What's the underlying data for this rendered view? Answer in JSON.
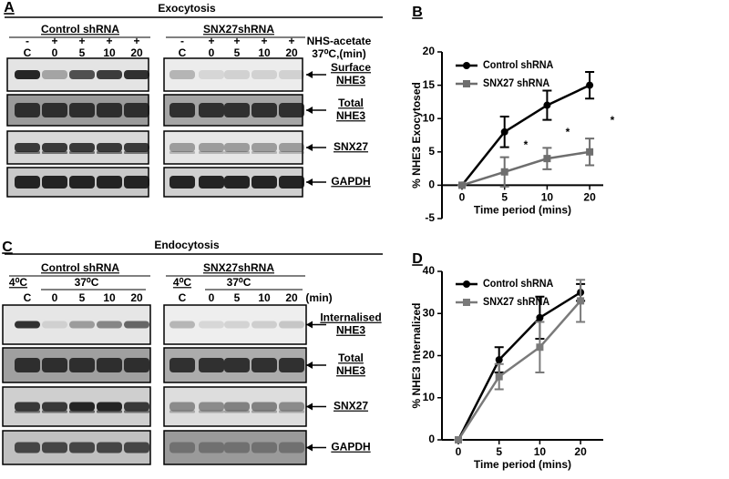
{
  "panel_labels": [
    "A",
    "B",
    "C",
    "D"
  ],
  "exocytosis": {
    "title": "Exocytosis",
    "groups": [
      "Control shRNA",
      "SNX27shRNA"
    ],
    "treatment_row": [
      "-",
      "+",
      "+",
      "+",
      "+"
    ],
    "lanes": [
      "C",
      "0",
      "5",
      "10",
      "20"
    ],
    "conditions": [
      "NHS-acetate",
      "37⁰C,(min)"
    ],
    "blots": [
      [
        "Surface",
        "NHE3"
      ],
      [
        "Total",
        "NHE3"
      ],
      [
        "SNX27"
      ],
      [
        "GAPDH"
      ]
    ]
  },
  "endocytosis": {
    "title": "Endocytosis",
    "groups": [
      "Control shRNA",
      "SNX27shRNA"
    ],
    "temperatures": [
      "4⁰C",
      "37⁰C"
    ],
    "lanes": [
      "C",
      "0",
      "5",
      "10",
      "20"
    ],
    "unit": "(min)",
    "blots": [
      [
        "Internalised",
        "NHE3"
      ],
      [
        "Total",
        "NHE3"
      ],
      [
        "SNX27"
      ],
      [
        "GAPDH"
      ]
    ]
  },
  "chart_data": [
    {
      "type": "line",
      "ylabel": "% NHE3 Exocytosed",
      "xlabel": "Time period (mins)",
      "categories": [
        "0",
        "5",
        "10",
        "20"
      ],
      "ylim": [
        -5,
        20
      ],
      "yticks": [
        -5,
        0,
        5,
        10,
        15,
        20
      ],
      "series": [
        {
          "name": "Control shRNA",
          "color": "#000000",
          "marker": "circle",
          "values": [
            0,
            8,
            12,
            15
          ],
          "errors": [
            0,
            2.3,
            2.2,
            2
          ]
        },
        {
          "name": "SNX27 shRNA",
          "color": "#6e6e6e",
          "marker": "square",
          "values": [
            0,
            2,
            4,
            5
          ],
          "errors": [
            0,
            2.2,
            1.6,
            2
          ]
        }
      ],
      "annotations": [
        "*",
        "*",
        "*"
      ]
    },
    {
      "type": "line",
      "ylabel": "% NHE3 Internalized",
      "xlabel": "Time period (mins)",
      "categories": [
        "0",
        "5",
        "10",
        "20"
      ],
      "ylim": [
        0,
        40
      ],
      "yticks": [
        0,
        10,
        20,
        30,
        40
      ],
      "series": [
        {
          "name": "Control shRNA",
          "color": "#000000",
          "marker": "circle",
          "values": [
            0,
            19,
            29,
            35
          ],
          "errors": [
            0,
            3,
            5,
            2
          ]
        },
        {
          "name": "SNX27 shRNA",
          "color": "#7a7a7a",
          "marker": "square",
          "values": [
            0,
            15,
            22,
            33
          ],
          "errors": [
            0,
            3,
            6,
            5
          ]
        }
      ]
    }
  ]
}
